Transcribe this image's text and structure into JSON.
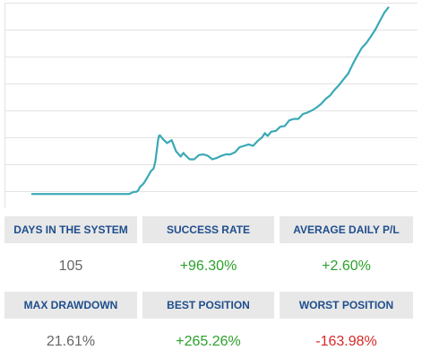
{
  "chart_data": {
    "type": "line",
    "series": [
      {
        "x": [
          0,
          10,
          20,
          30,
          40,
          50,
          60,
          70,
          80,
          90,
          100,
          108,
          113,
          116,
          118,
          120,
          124,
          128,
          132,
          135,
          137,
          140,
          141,
          142,
          145,
          150,
          155,
          160,
          165,
          168,
          170,
          175,
          180,
          185,
          190,
          195,
          200,
          205,
          210,
          215,
          220,
          225,
          230,
          235,
          240,
          245,
          250,
          255,
          258,
          261,
          265,
          270,
          275,
          280,
          285,
          290,
          295,
          300,
          305,
          310,
          315,
          320,
          325,
          330,
          335,
          340,
          345,
          350,
          355,
          360,
          365,
          370,
          375,
          380,
          385,
          390,
          395
        ],
        "y": [
          0,
          0,
          0,
          0,
          0,
          0,
          0,
          0,
          0,
          0,
          0,
          0,
          0.3,
          0.3,
          0.5,
          1.0,
          1.5,
          2.3,
          3.2,
          3.6,
          4.6,
          7.6,
          8.2,
          8.3,
          7.8,
          7.2,
          7.6,
          6.0,
          5.3,
          5.8,
          5.5,
          4.9,
          4.9,
          5.5,
          5.6,
          5.4,
          4.9,
          5.1,
          5.4,
          5.6,
          5.6,
          5.9,
          6.6,
          6.8,
          7.0,
          6.8,
          7.5,
          8.0,
          8.6,
          8.2,
          8.8,
          8.9,
          9.5,
          9.6,
          10.4,
          10.6,
          10.6,
          11.3,
          11.5,
          11.8,
          12.2,
          12.7,
          13.4,
          13.9,
          14.7,
          15.4,
          16.2,
          17.0,
          18.3,
          19.5,
          20.6,
          21.3,
          22.2,
          23.2,
          24.4,
          25.6,
          26.4
        ]
      }
    ],
    "ylim": [
      -2,
      27
    ],
    "xlim": [
      -8,
      400
    ],
    "grid": true,
    "line_color": "#3aa9b5"
  },
  "stats": {
    "row1": {
      "labels": [
        "DAYS IN THE SYSTEM",
        "SUCCESS RATE",
        "AVERAGE DAILY P/L"
      ],
      "values": [
        "105",
        "+96.30%",
        "+2.60%"
      ]
    },
    "row2": {
      "labels": [
        "MAX DRAWDOWN",
        "BEST POSITION",
        "WORST POSITION"
      ],
      "values": [
        "21.61%",
        "+265.26%",
        "-163.98%"
      ]
    }
  },
  "colors": {
    "label_bg": "#e8e8e8",
    "label_text": "#1f4e8c",
    "positive": "#2aa02a",
    "negative": "#d62828",
    "neutral": "#666666"
  }
}
